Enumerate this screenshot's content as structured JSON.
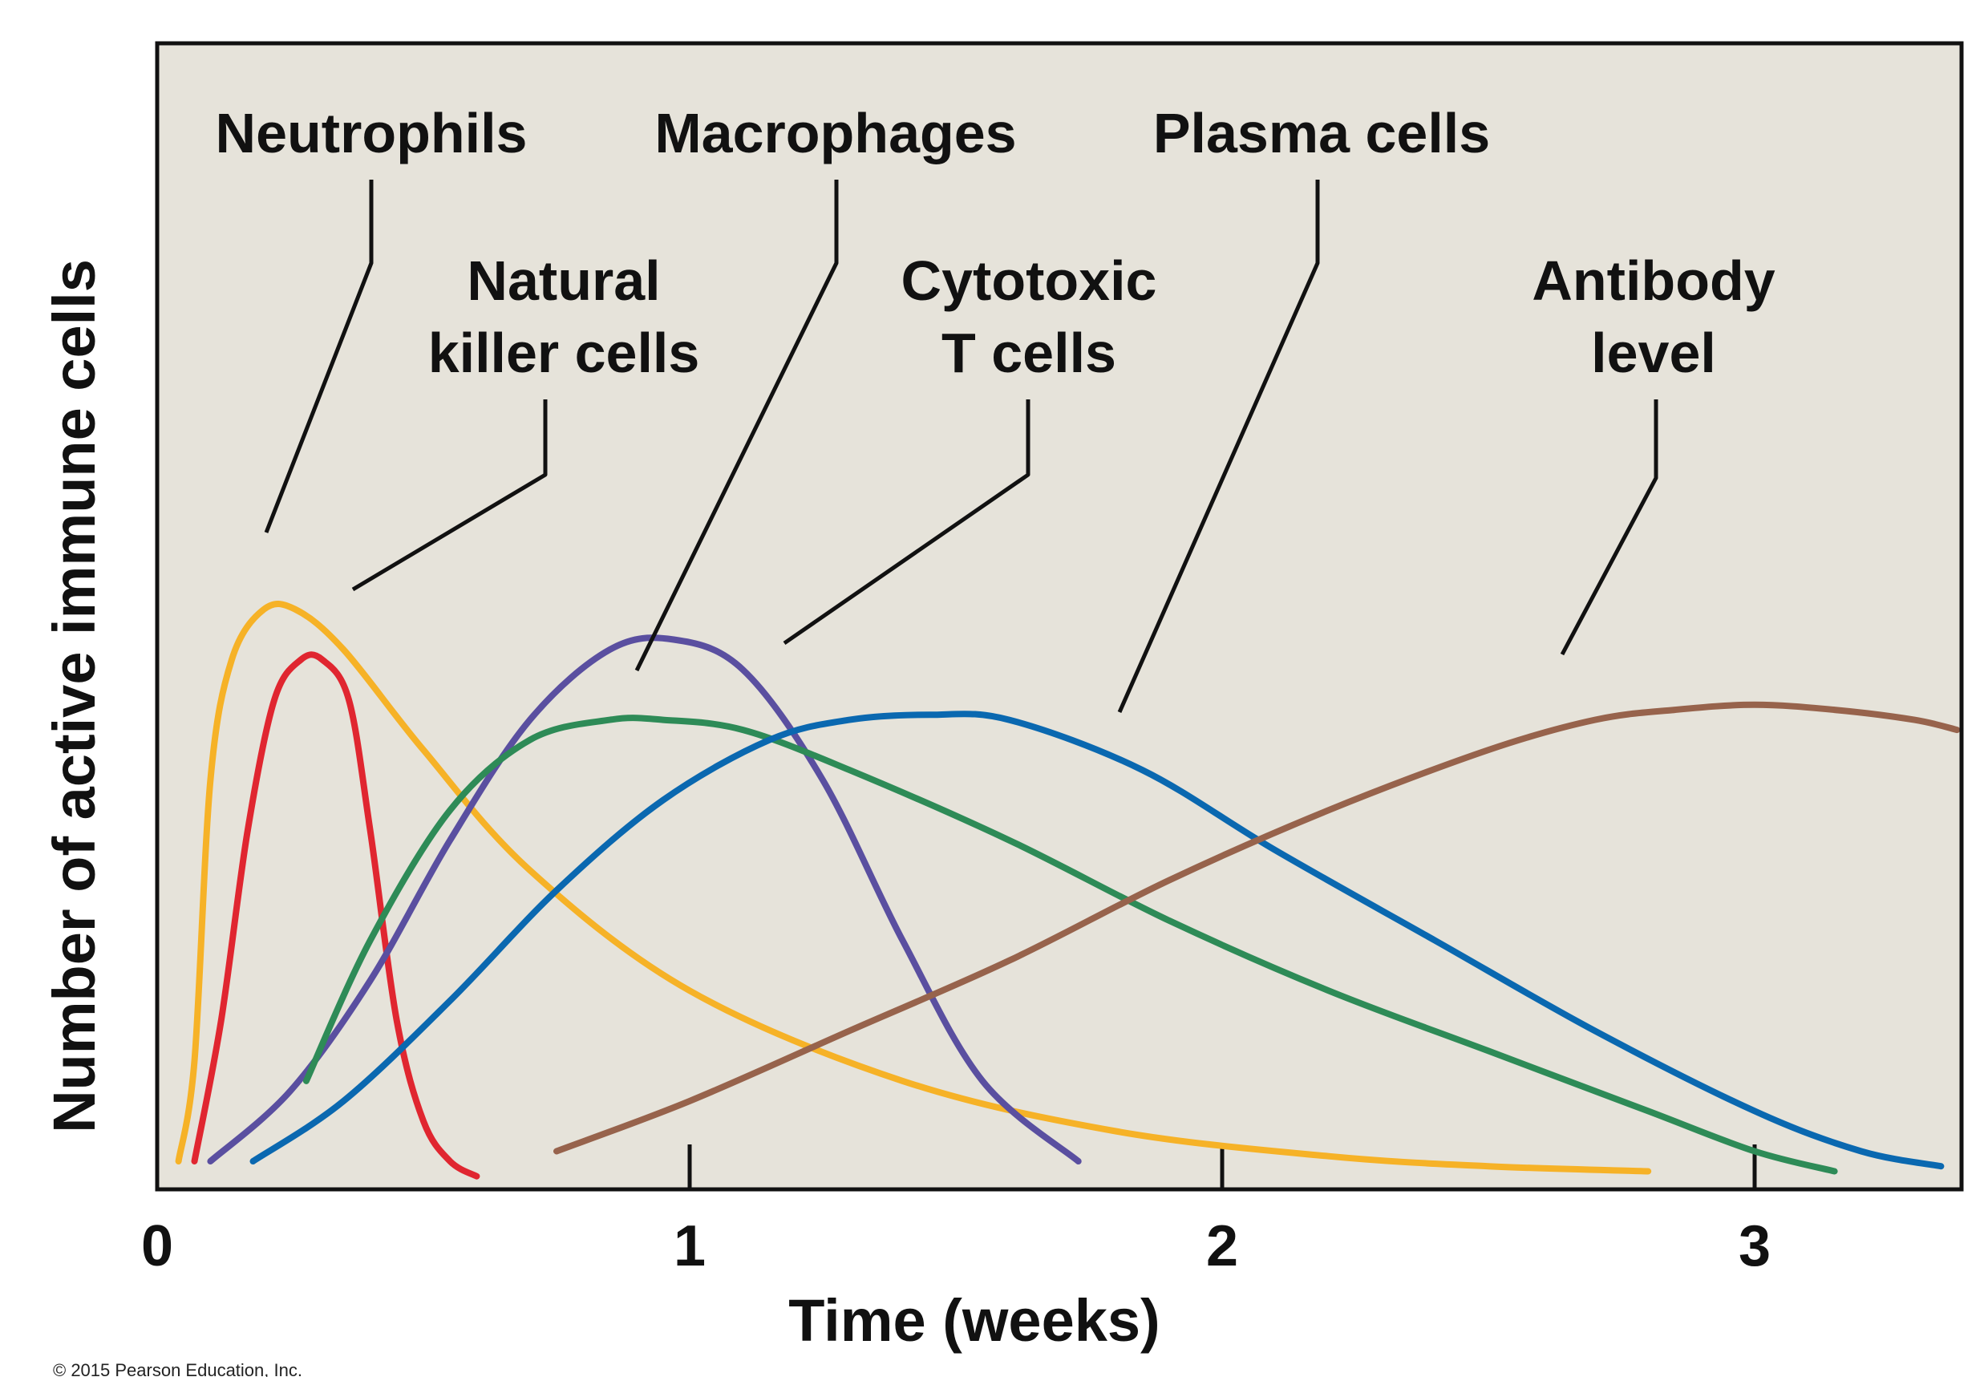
{
  "chart_data": {
    "type": "line",
    "title": "",
    "xlabel": "Time (weeks)",
    "ylabel": "Number of active immune cells",
    "xlim": [
      0,
      3.4
    ],
    "ylim": [
      0,
      100
    ],
    "xticks": [
      0,
      1,
      2,
      3
    ],
    "xtick_labels": [
      "0",
      "1",
      "2",
      "3"
    ],
    "grid": false,
    "legend": "none",
    "background": "#e6e3da",
    "series": [
      {
        "name": "Neutrophils",
        "label_lines": [
          "Neutrophils"
        ],
        "color": "#f6b227",
        "x": [
          0.04,
          0.07,
          0.1,
          0.14,
          0.2,
          0.26,
          0.35,
          0.5,
          0.7,
          1.0,
          1.4,
          1.8,
          2.2,
          2.5,
          2.8
        ],
        "y": [
          2,
          12,
          40,
          52,
          57,
          57,
          53,
          43,
          31,
          19,
          10,
          5,
          2.5,
          1.5,
          1
        ]
      },
      {
        "name": "Natural killer cells",
        "label_lines": [
          "Natural",
          "killer cells"
        ],
        "color": "#e02630",
        "x": [
          0.07,
          0.12,
          0.17,
          0.22,
          0.27,
          0.31,
          0.36,
          0.4,
          0.45,
          0.5,
          0.55,
          0.6
        ],
        "y": [
          2,
          16,
          35,
          48,
          52,
          52,
          48,
          35,
          16,
          6,
          2,
          0.5
        ]
      },
      {
        "name": "Macrophages",
        "label_lines": [
          "Macrophages"
        ],
        "color": "#5a4fa0",
        "x": [
          0.1,
          0.25,
          0.4,
          0.55,
          0.7,
          0.85,
          0.97,
          1.1,
          1.25,
          1.4,
          1.55,
          1.73
        ],
        "y": [
          2,
          9,
          20,
          34,
          46,
          53,
          54,
          51,
          40,
          24,
          10,
          2
        ]
      },
      {
        "name": "Cytotoxic T cells",
        "label_lines": [
          "Cytotoxic",
          "T cells"
        ],
        "color": "#2e8b57",
        "x": [
          0.28,
          0.4,
          0.55,
          0.7,
          0.85,
          0.95,
          1.1,
          1.3,
          1.6,
          1.9,
          2.2,
          2.5,
          2.8,
          3.0,
          3.15
        ],
        "y": [
          10,
          24,
          37,
          44,
          46,
          46,
          45,
          41,
          34,
          26,
          19,
          13,
          7,
          3,
          1
        ]
      },
      {
        "name": "Plasma cells",
        "label_lines": [
          "Plasma cells"
        ],
        "color": "#0a68b0",
        "x": [
          0.18,
          0.35,
          0.55,
          0.75,
          0.95,
          1.15,
          1.3,
          1.45,
          1.6,
          1.85,
          2.1,
          2.4,
          2.7,
          3.0,
          3.2,
          3.35
        ],
        "y": [
          2,
          8,
          18,
          29,
          38,
          44,
          46,
          46.5,
          46,
          41,
          33,
          24,
          15,
          7,
          3,
          1.5
        ]
      },
      {
        "name": "Antibody level",
        "label_lines": [
          "Antibody",
          "level"
        ],
        "color": "#97634c",
        "x": [
          0.75,
          1.0,
          1.3,
          1.6,
          1.9,
          2.2,
          2.5,
          2.7,
          2.85,
          3.0,
          3.15,
          3.3,
          3.38
        ],
        "y": [
          3,
          8,
          15,
          22,
          30,
          37,
          43,
          46,
          47,
          47.5,
          47,
          46,
          45
        ]
      }
    ]
  },
  "credit": "© 2015 Pearson Education, Inc."
}
